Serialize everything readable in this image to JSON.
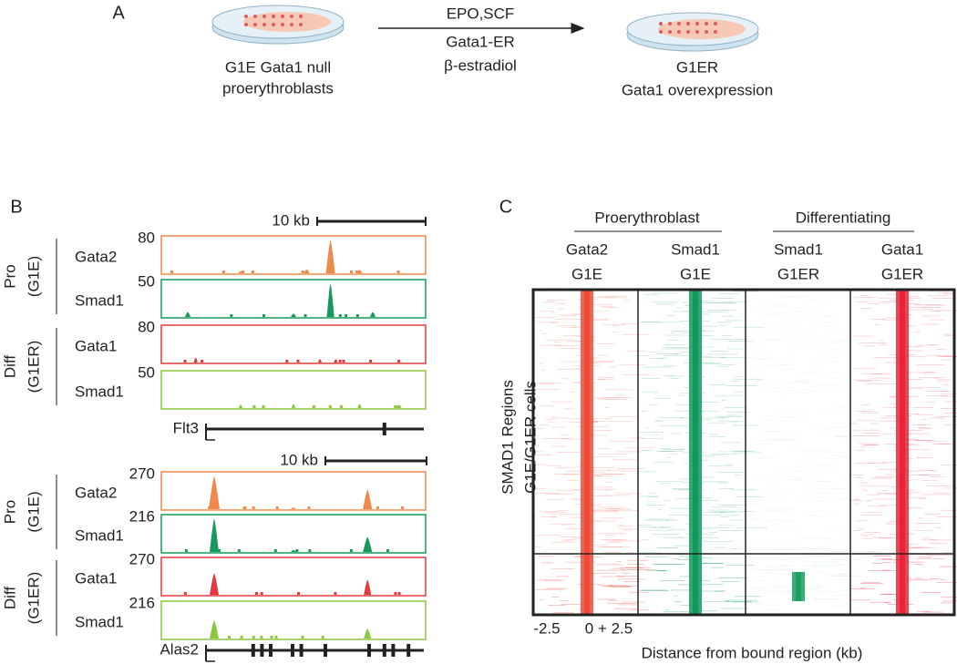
{
  "panel_a": {
    "label": "A",
    "source": [
      "G1E Gata1 null",
      "proerythroblasts"
    ],
    "treatment": [
      "EPO,SCF",
      "Gata1-ER",
      "β-estradiol"
    ],
    "result": [
      "G1ER",
      "Gata1 overexpression"
    ]
  },
  "panel_b": {
    "label": "B",
    "groups": [
      {
        "stage": "Pro",
        "cells": "(G1E)"
      },
      {
        "stage": "Diff",
        "cells": "(G1ER)"
      }
    ],
    "loci": [
      {
        "scale": "10 kb",
        "gene": "Flt3",
        "tracks": [
          {
            "name": "Gata2",
            "max": 80
          },
          {
            "name": "Smad1",
            "max": 50
          },
          {
            "name": "Gata1",
            "max": 80
          },
          {
            "name": "Smad1",
            "max": 50
          }
        ]
      },
      {
        "scale": "10 kb",
        "gene": "Alas2",
        "tracks": [
          {
            "name": "Gata2",
            "max": 270
          },
          {
            "name": "Smad1",
            "max": 216
          },
          {
            "name": "Gata1",
            "max": 270
          },
          {
            "name": "Smad1",
            "max": 216
          }
        ]
      }
    ]
  },
  "panel_c": {
    "label": "C",
    "groups": [
      "Proerythroblast",
      "Differentiating"
    ],
    "columns": [
      {
        "factor": "Gata2",
        "cells": "G1E"
      },
      {
        "factor": "Smad1",
        "cells": "G1E"
      },
      {
        "factor": "Smad1",
        "cells": "G1ER"
      },
      {
        "factor": "Gata1",
        "cells": "G1ER"
      }
    ],
    "y_label": [
      "SMAD1 Regions",
      "G1E/G1ER cells"
    ],
    "x_ticks": [
      "-2.5",
      "0 + 2.5"
    ],
    "x_label": "Distance from bound region (kb)"
  }
}
